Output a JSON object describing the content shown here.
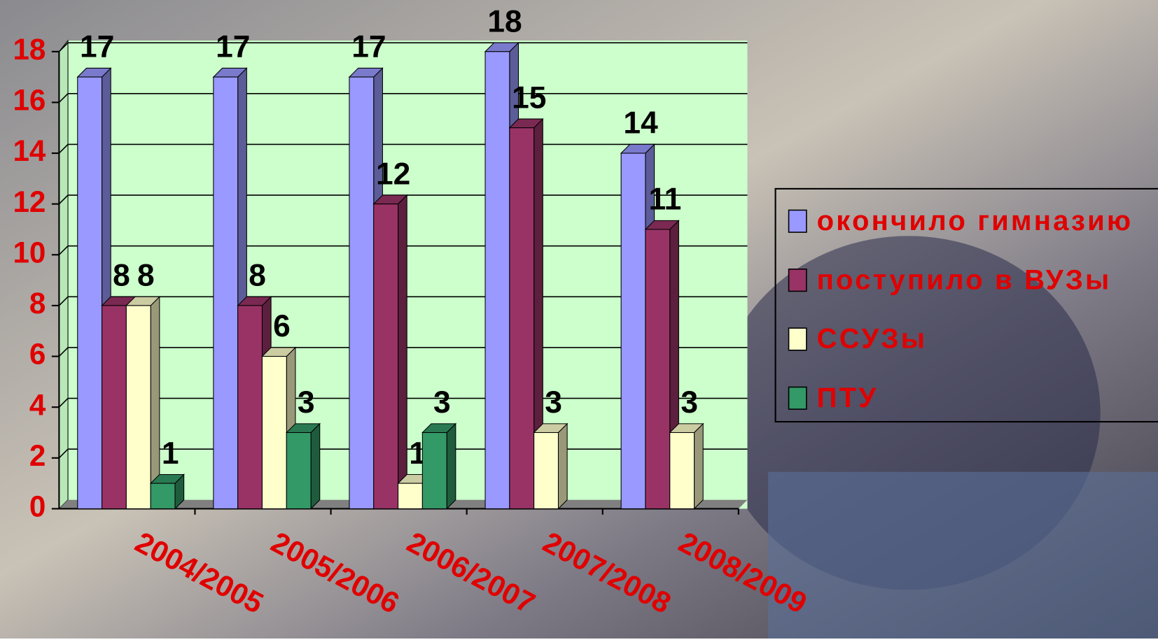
{
  "chart_data": {
    "type": "bar3d",
    "categories": [
      "2004/2005",
      "2005/2006",
      "2006/2007",
      "2007/2008",
      "2008/2009"
    ],
    "series": [
      {
        "name": "окончило гимназию",
        "color": "#9999ff",
        "values": [
          17,
          17,
          17,
          18,
          14
        ]
      },
      {
        "name": "поступило в ВУЗы",
        "color": "#993366",
        "values": [
          8,
          8,
          12,
          15,
          11
        ]
      },
      {
        "name": "ССУЗы",
        "color": "#ffffcc",
        "values": [
          8,
          6,
          1,
          3,
          3
        ]
      },
      {
        "name": "ПТУ",
        "color": "#339966",
        "values": [
          1,
          3,
          3,
          null,
          null
        ]
      }
    ],
    "ylim": [
      0,
      18
    ],
    "yticks": [
      0,
      2,
      4,
      6,
      8,
      10,
      12,
      14,
      16,
      18
    ],
    "grid": true,
    "legend": "right"
  }
}
